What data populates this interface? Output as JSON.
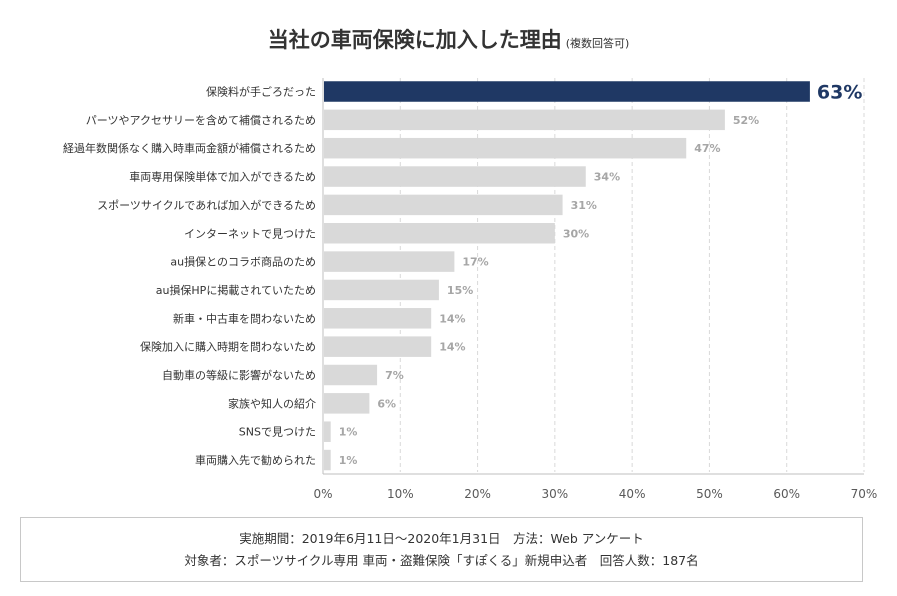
{
  "title": "当社の車両保険に加入した理由",
  "subtitle": "(複数回答可)",
  "chart_data": {
    "type": "bar",
    "orientation": "horizontal",
    "categories": [
      "保険料が手ごろだった",
      "パーツやアクセサリーを含めて補償されるため",
      "経過年数関係なく購入時車両金額が補償されるため",
      "車両専用保険単体で加入ができるため",
      "スポーツサイクルであれば加入ができるため",
      "インターネットで見つけた",
      "au損保とのコラボ商品のため",
      "au損保HPに掲載されていたため",
      "新車・中古車を問わないため",
      "保険加入に購入時期を問わないため",
      "自動車の等級に影響がないため",
      "家族や知人の紹介",
      "SNSで見つけた",
      "車両購入先で勧められた"
    ],
    "values": [
      63,
      52,
      47,
      34,
      31,
      30,
      17,
      15,
      14,
      14,
      7,
      6,
      1,
      1
    ],
    "value_labels": [
      "63%",
      "52%",
      "47%",
      "34%",
      "31%",
      "30%",
      "17%",
      "15%",
      "14%",
      "14%",
      "7%",
      "6%",
      "1%",
      "1%"
    ],
    "xlim": [
      0,
      70
    ],
    "x_ticks": [
      0,
      10,
      20,
      30,
      40,
      50,
      60,
      70
    ],
    "x_tick_labels": [
      "0%",
      "10%",
      "20%",
      "30%",
      "40%",
      "50%",
      "60%",
      "70%"
    ],
    "highlight_index": 0,
    "grid": "vertical dashed",
    "colors": {
      "highlight": "#1f3864",
      "bar": "#d9d9d9",
      "label": "#a6a6a6",
      "grid": "#d9d9d9",
      "axis": "#bfbfbf"
    }
  },
  "footnote": {
    "line1": "実施期間：2019年6月11日〜2020年1月31日　方法：Web アンケート",
    "line2": "対象者：スポーツサイクル専用 車両・盗難保険「すぽくる」新規申込者　回答人数：187名"
  }
}
